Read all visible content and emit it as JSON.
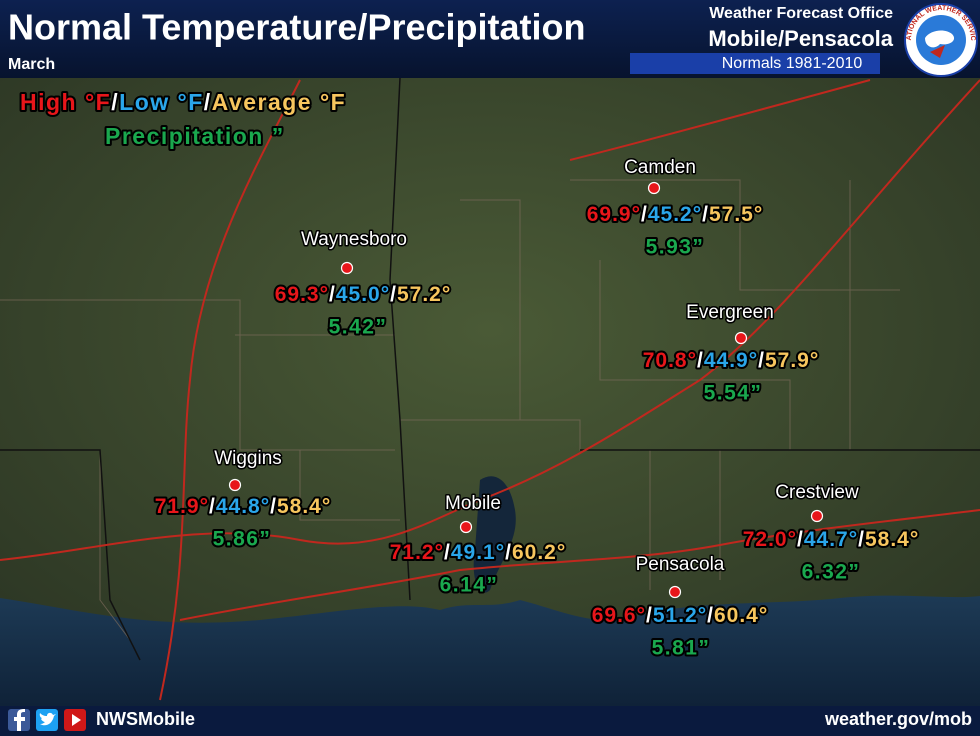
{
  "header": {
    "title": "Normal Temperature/Precipitation",
    "month": "March",
    "office": {
      "line1": "Weather Forecast Office",
      "line2": "Mobile/Pensacola",
      "normals": "Normals 1981-2010"
    }
  },
  "logo": "NATIONAL WEATHER SERVICE",
  "legend": {
    "high": "High °F",
    "separator": "/",
    "low": "Low °F",
    "average": "Average °F",
    "precipitation": "Precipitation ”"
  },
  "cities": [
    {
      "name": "Camden",
      "high": "69.9°",
      "low": "45.2°",
      "average": "57.5°",
      "precipitation": "5.93”"
    },
    {
      "name": "Waynesboro",
      "high": "69.3°",
      "low": "45.0°",
      "average": "57.2°",
      "precipitation": "5.42”"
    },
    {
      "name": "Evergreen",
      "high": "70.8°",
      "low": "44.9°",
      "average": "57.9°",
      "precipitation": "5.54”"
    },
    {
      "name": "Wiggins",
      "high": "71.9°",
      "low": "44.8°",
      "average": "58.4°",
      "precipitation": "5.86”"
    },
    {
      "name": "Mobile",
      "high": "71.2°",
      "low": "49.1°",
      "average": "60.2°",
      "precipitation": "6.14”"
    },
    {
      "name": "Crestview",
      "high": "72.0°",
      "low": "44.7°",
      "average": "58.4°",
      "precipitation": "6.32”"
    },
    {
      "name": "Pensacola",
      "high": "69.6°",
      "low": "51.2°",
      "average": "60.4°",
      "precipitation": "5.81”"
    }
  ],
  "footer": {
    "social": "NWSMobile",
    "url": "weather.gov/mob"
  }
}
